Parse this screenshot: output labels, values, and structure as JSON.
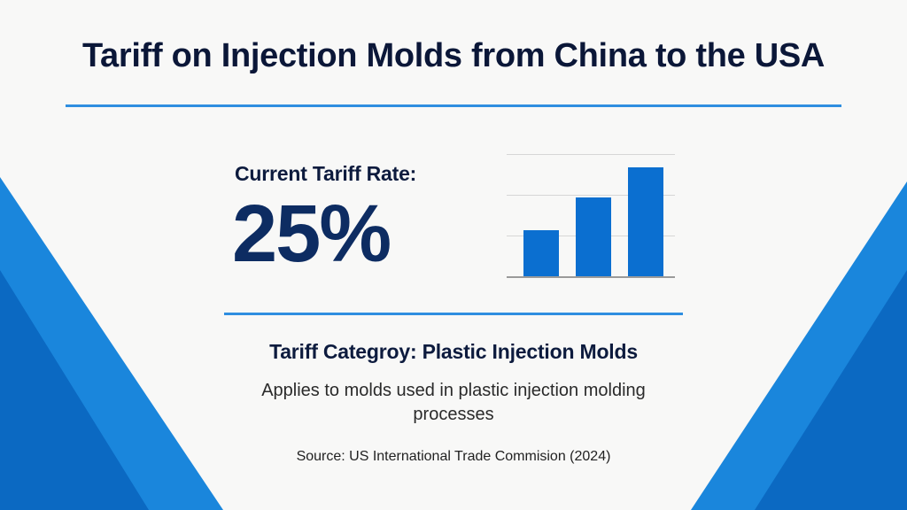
{
  "header": {
    "title": "Tariff on Injection Molds from China to the USA"
  },
  "rate": {
    "label": "Current Tariff Rate:",
    "value": "25%"
  },
  "category": {
    "title": "Tariff Categroy: Plastic Injection Molds",
    "description": "Applies to molds used in plastic injection molding processes"
  },
  "footer": {
    "source": "Source: US International Trade Commision (2024)"
  },
  "colors": {
    "title_text": "#0b1738",
    "rate_value": "#0d2c62",
    "accent_rule": "#2f8ee0",
    "bar": "#0b6fd0",
    "deco_light_blue": "#1a86dc",
    "deco_dark_blue": "#0b69c2",
    "background": "#f8f8f7"
  },
  "chart_data": {
    "type": "bar",
    "title": "",
    "xlabel": "",
    "ylabel": "",
    "categories": [
      "",
      "",
      ""
    ],
    "values": [
      1.13,
      1.93,
      2.67
    ],
    "ylim": [
      0,
      3
    ],
    "gridlines": [
      1,
      2,
      3
    ],
    "grid": true,
    "legend": "none",
    "note": "Decorative icon-style bar chart without axis labels; values are relative heights in gridline units"
  }
}
